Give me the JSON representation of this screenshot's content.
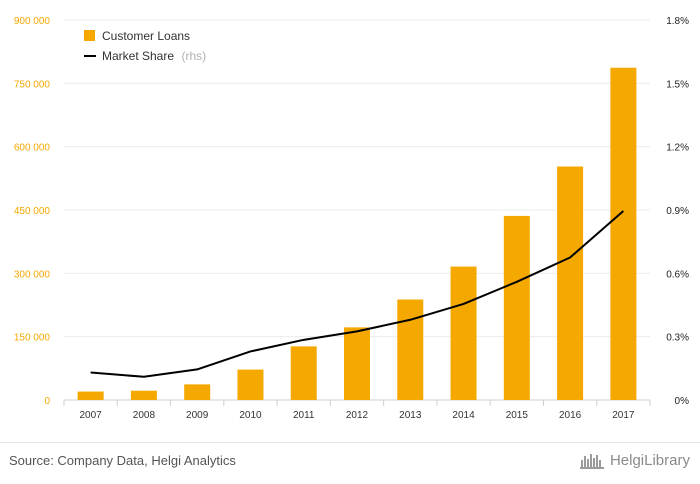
{
  "chart_data": {
    "type": "bar",
    "categories": [
      "2007",
      "2008",
      "2009",
      "2010",
      "2011",
      "2012",
      "2013",
      "2014",
      "2015",
      "2016",
      "2017"
    ],
    "series": [
      {
        "name": "Customer Loans",
        "type": "bar",
        "axis": "left",
        "color": "#f5a800",
        "values": [
          20000,
          22000,
          37000,
          72000,
          127000,
          172000,
          238000,
          316000,
          436000,
          553000,
          787000
        ]
      },
      {
        "name": "Market Share",
        "legend_suffix": "(rhs)",
        "type": "line",
        "axis": "right",
        "color": "#000000",
        "values": [
          0.13,
          0.11,
          0.145,
          0.23,
          0.285,
          0.325,
          0.38,
          0.455,
          0.56,
          0.675,
          0.895
        ]
      }
    ],
    "y_left": {
      "ylim": [
        0,
        900000
      ],
      "ticks": [
        0,
        150000,
        300000,
        450000,
        600000,
        750000,
        900000
      ],
      "tick_labels": [
        "0",
        "150 000",
        "300 000",
        "450 000",
        "600 000",
        "750 000",
        "900 000"
      ]
    },
    "y_right": {
      "ylim": [
        0,
        1.8
      ],
      "ticks": [
        0,
        0.3,
        0.6,
        0.9,
        1.2,
        1.5,
        1.8
      ],
      "tick_labels": [
        "0%",
        "0.3%",
        "0.6%",
        "0.9%",
        "1.2%",
        "1.5%",
        "1.8%"
      ]
    },
    "legend_position": "top-left",
    "grid": true
  },
  "footer": {
    "source": "Source: Company Data, Helgi Analytics",
    "logo_text": "HelgiLibrary"
  }
}
